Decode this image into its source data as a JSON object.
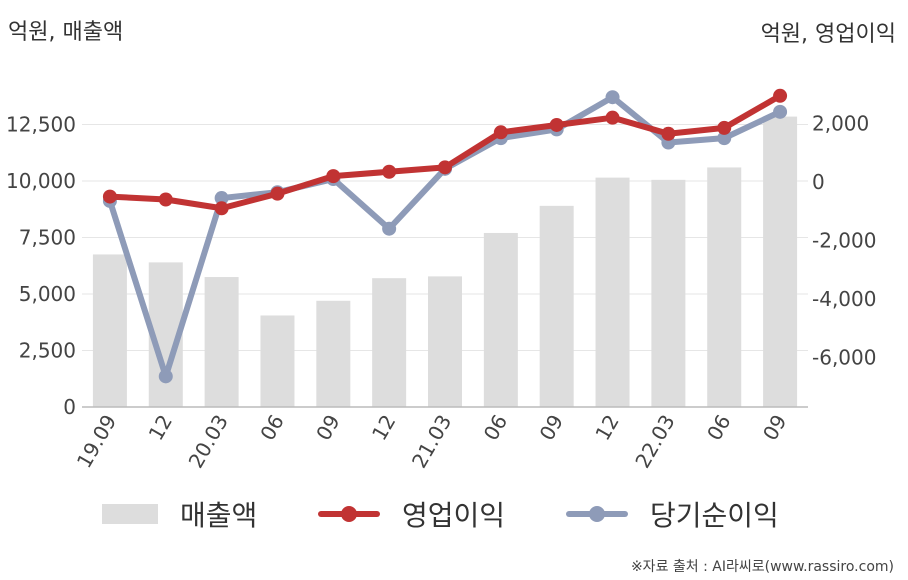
{
  "left_unit": "억원, 매출액",
  "right_unit": "억원, 영업이익",
  "source": "※자료 출처 : AI라씨로(www.rassiro.com)",
  "chart_data": {
    "type": "bar",
    "categories": [
      "19.09",
      "12",
      "20.03",
      "06",
      "09",
      "12",
      "21.03",
      "06",
      "09",
      "12",
      "22.03",
      "06",
      "09"
    ],
    "series": [
      {
        "name": "매출액",
        "type": "bar",
        "axis": "left",
        "color": "#dddddd",
        "values": [
          6750,
          6400,
          5750,
          4050,
          4700,
          5700,
          5780,
          7700,
          8900,
          10150,
          10050,
          10600,
          12850
        ]
      },
      {
        "name": "영업이익",
        "type": "line",
        "axis": "right",
        "color": "#c13333",
        "values": [
          -500,
          -600,
          -900,
          -400,
          200,
          350,
          500,
          1700,
          1950,
          2200,
          1650,
          1850,
          2950
        ]
      },
      {
        "name": "당기순이익",
        "type": "line",
        "axis": "right",
        "color": "#8e9bb8",
        "values": [
          -650,
          -6650,
          -550,
          -350,
          100,
          -1600,
          450,
          1500,
          1800,
          2900,
          1350,
          1500,
          2400
        ]
      }
    ],
    "y_left": {
      "min": 0,
      "max": 15000,
      "ticks": [
        0,
        2500,
        5000,
        7500,
        10000,
        12500
      ],
      "tick_labels": [
        "0",
        "2,500",
        "5,000",
        "7,500",
        "10,000",
        "12,500"
      ]
    },
    "y_right": {
      "min": -7700,
      "max": 3900,
      "ticks": [
        -6000,
        -4000,
        -2000,
        0,
        2000
      ],
      "tick_labels": [
        "-6,000",
        "-4,000",
        "-2,000",
        "0",
        "2,000"
      ]
    },
    "grid": true,
    "legend": "bottom"
  }
}
